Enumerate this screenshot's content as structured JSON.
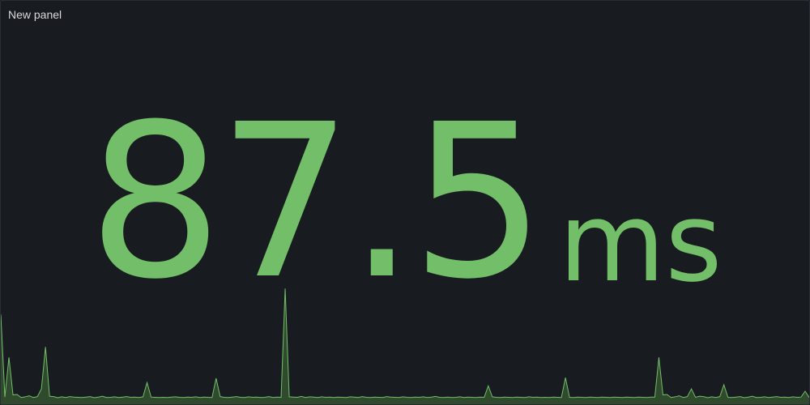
{
  "panel": {
    "title": "New panel"
  },
  "stat": {
    "value": "87.5",
    "unit": "ms",
    "color": "#73bf69",
    "fill_color": "#2f4a2c"
  },
  "chart_data": {
    "type": "area",
    "values": [
      1.8,
      1.8,
      20.2,
      2.8,
      3.0,
      1.6,
      1.9,
      2.4,
      1.6,
      2.0,
      5.6,
      1.7,
      2.2,
      2.0,
      1.5,
      1.9,
      1.6,
      2.0,
      1.8,
      1.7,
      1.6,
      1.8,
      2.0,
      1.5,
      1.8,
      2.2,
      1.6,
      1.7,
      1.9,
      1.6,
      1.8,
      2.0,
      1.7,
      1.8,
      1.6,
      1.9,
      1.7,
      1.8,
      1.7,
      1.6,
      1.7,
      1.6,
      1.8,
      1.9,
      1.7,
      1.6,
      1.8,
      1.7,
      1.9,
      1.6,
      1.8,
      1.7,
      1.6,
      1.8,
      2.0,
      1.7,
      1.6,
      1.8,
      2.0,
      1.7,
      1.6,
      1.9,
      1.7,
      1.8,
      1.6,
      1.7,
      2.0,
      1.6,
      1.8,
      1.7,
      1.6,
      1.9,
      1.8,
      1.7,
      2.1,
      1.6,
      1.9,
      1.8,
      1.6,
      1.9,
      1.7,
      1.8,
      1.6,
      1.8,
      1.7,
      1.6,
      1.9,
      1.8,
      1.6,
      2.0,
      1.7,
      1.6,
      1.8,
      1.7,
      1.6,
      2.0,
      1.8,
      1.7,
      1.6,
      1.9,
      1.7,
      1.6,
      1.8,
      1.7,
      1.9,
      1.6,
      1.8,
      2.1,
      1.7,
      1.6,
      1.8,
      1.6,
      1.7,
      1.9,
      1.6,
      1.8,
      1.7,
      1.6,
      1.8,
      1.7,
      1.6,
      1.9,
      1.7,
      1.6,
      1.8,
      1.7,
      1.6,
      1.8,
      1.7,
      1.6,
      1.9,
      1.7,
      1.8,
      1.6,
      1.7,
      1.6,
      1.8,
      1.7,
      1.6,
      1.8,
      1.7,
      1.6,
      1.8,
      1.7,
      1.6,
      1.8,
      1.7,
      1.6,
      1.8,
      1.7,
      1.6,
      1.8,
      1.7,
      1.6,
      1.8,
      1.7,
      1.6,
      1.8,
      1.7,
      1.6
    ],
    "spikes": [
      {
        "index": 0,
        "value": 40
      },
      {
        "index": 11,
        "value": 25
      },
      {
        "index": 36,
        "value": 8.5
      },
      {
        "index": 53,
        "value": 10.5
      },
      {
        "index": 70,
        "value": 52
      },
      {
        "index": 120,
        "value": 7
      },
      {
        "index": 139,
        "value": 10.8
      },
      {
        "index": 178,
        "value": 7.5
      },
      {
        "index": 198,
        "value": 4.5
      }
    ],
    "ylim": [
      0,
      60
    ],
    "line_color": "#73bf69",
    "fill_color": "#2f4a2c"
  }
}
